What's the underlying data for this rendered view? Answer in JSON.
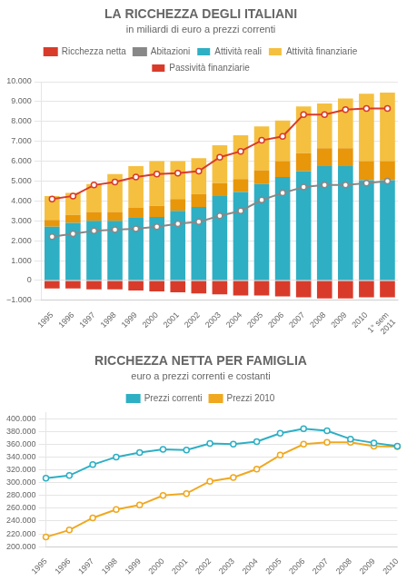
{
  "chart_data": [
    {
      "type": "bar",
      "title": "LA RICCHEZZA DEGLI ITALIANI",
      "subtitle": "in miliardi di euro a prezzi correnti",
      "categories": [
        "1995",
        "1996",
        "1997",
        "1998",
        "1999",
        "2000",
        "2001",
        "2002",
        "2003",
        "2004",
        "2005",
        "2006",
        "2007",
        "2008",
        "2009",
        "2010",
        "1° sem\n2011"
      ],
      "series": [
        {
          "name": "Attività reali",
          "color": "#2eafc4",
          "values": [
            2700,
            2900,
            3000,
            3000,
            3150,
            3200,
            3500,
            3700,
            4250,
            4450,
            4850,
            5200,
            5500,
            5750,
            5750,
            5050,
            5050
          ]
        },
        {
          "color": "#e8960a",
          "values": [
            350,
            400,
            450,
            450,
            500,
            550,
            600,
            650,
            650,
            650,
            700,
            800,
            900,
            900,
            900,
            950,
            950
          ]
        },
        {
          "name": "Attività finanziarie",
          "color": "#f5c040",
          "values": [
            1200,
            1100,
            1400,
            1900,
            2100,
            2250,
            1900,
            1800,
            1900,
            2200,
            2200,
            2050,
            2350,
            2250,
            2500,
            3400,
            3450
          ]
        },
        {
          "name": "Passività finanziarie",
          "color": "#d93b2b",
          "values": [
            -400,
            -400,
            -450,
            -450,
            -500,
            -550,
            -600,
            -650,
            -700,
            -750,
            -750,
            -800,
            -850,
            -900,
            -900,
            -850,
            -850
          ]
        },
        {
          "name": "Ricchezza netta",
          "type": "line",
          "color": "#d93b2b",
          "marker": "circle",
          "values": [
            4100,
            4250,
            4800,
            4950,
            5200,
            5350,
            5400,
            5500,
            6200,
            6500,
            7050,
            7250,
            8350,
            8350,
            8600,
            8650,
            8650
          ]
        },
        {
          "name": "Abitazioni",
          "type": "line",
          "color": "#888888",
          "marker": "circle",
          "values": [
            2200,
            2350,
            2500,
            2550,
            2600,
            2700,
            2850,
            2950,
            3250,
            3500,
            4050,
            4400,
            4700,
            4800,
            4800,
            4900,
            5000
          ]
        }
      ],
      "stacked": true,
      "ylim": [
        -1000,
        10000
      ],
      "yticks": [
        {
          "value": -1000,
          "label": "−1.000"
        },
        0,
        {
          "value": 1000,
          "label": "1.000"
        },
        {
          "value": 2000,
          "label": "2.000"
        },
        {
          "value": 3000,
          "label": "3.000"
        },
        {
          "value": 4000,
          "label": "4.000"
        },
        {
          "value": 5000,
          "label": "5.000"
        },
        {
          "value": 6000,
          "label": "6.000"
        },
        {
          "value": 7000,
          "label": "7.000"
        },
        {
          "value": 8000,
          "label": "8.000"
        },
        {
          "value": 9000,
          "label": "9.000"
        },
        {
          "value": 10000,
          "label": "10.000"
        }
      ],
      "grid": "y",
      "legend": "top"
    },
    {
      "type": "line",
      "title": "RICCHEZZA NETTA PER FAMIGLIA",
      "subtitle": "euro a prezzi correnti e costanti",
      "categories": [
        "1995",
        "1996",
        "1997",
        "1998",
        "1999",
        "2000",
        "2001",
        "2002",
        "2003",
        "2004",
        "2005",
        "2006",
        "2007",
        "2008",
        "2009",
        "2010"
      ],
      "series": [
        {
          "name": "Prezzi correnti",
          "color": "#2eafc4",
          "marker": "circle",
          "values": [
            307000,
            311000,
            328000,
            340000,
            347000,
            352000,
            351000,
            361000,
            360000,
            364000,
            377000,
            384000,
            381000,
            368000,
            362000,
            357000
          ]
        },
        {
          "name": "Prezzi 2010",
          "color": "#f0a820",
          "marker": "circle",
          "values": [
            215000,
            226000,
            245000,
            258000,
            265000,
            280000,
            283000,
            302000,
            308000,
            321000,
            343000,
            360000,
            363000,
            363000,
            357000,
            356000
          ]
        }
      ],
      "ylim": [
        200000,
        410000
      ],
      "yticks": [
        {
          "value": 200000,
          "label": "200.000"
        },
        {
          "value": 220000,
          "label": "220.000"
        },
        {
          "value": 240000,
          "label": "240.000"
        },
        {
          "value": 260000,
          "label": "260.000"
        },
        {
          "value": 280000,
          "label": "280.000"
        },
        {
          "value": 300000,
          "label": "300.000"
        },
        {
          "value": 320000,
          "label": "320.000"
        },
        {
          "value": 340000,
          "label": "340.000"
        },
        {
          "value": 360000,
          "label": "360.000"
        },
        {
          "value": 380000,
          "label": "380.000"
        },
        {
          "value": 400000,
          "label": "400.000"
        }
      ],
      "grid": "y",
      "legend": "top"
    }
  ]
}
